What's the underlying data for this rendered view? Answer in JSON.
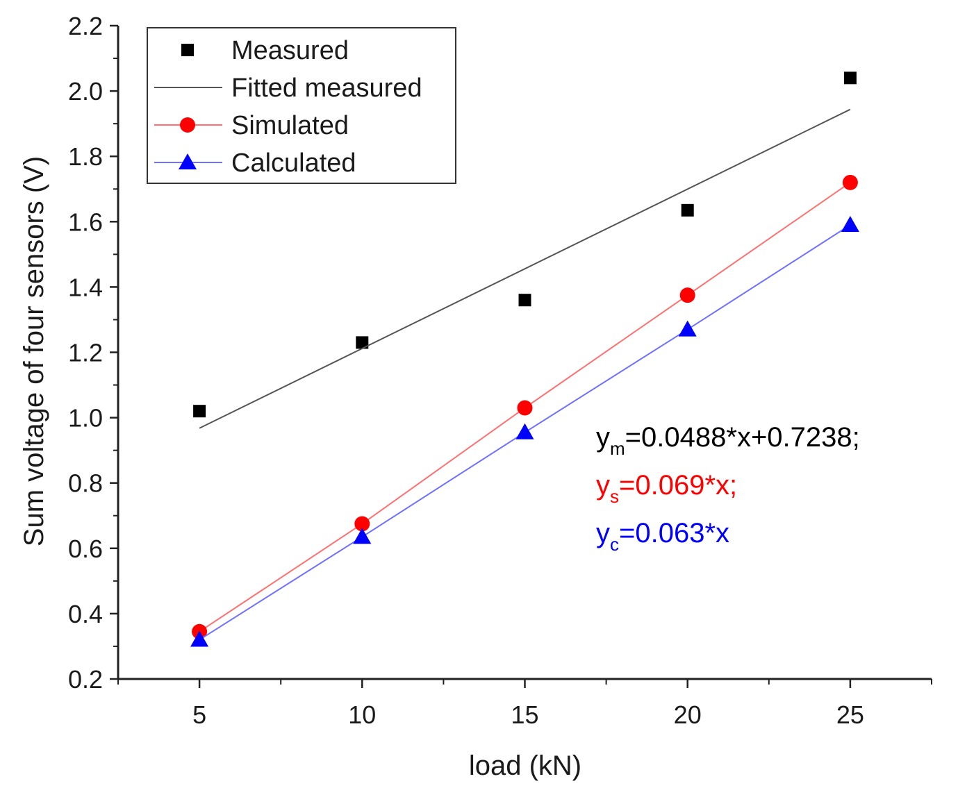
{
  "chart_data": {
    "type": "scatter",
    "title": "",
    "xlabel": "load (kN)",
    "ylabel": "Sum voltage of four sensors (V)",
    "xlim": [
      2.5,
      27.5
    ],
    "ylim": [
      0.2,
      2.2
    ],
    "x_ticks": [
      5,
      10,
      15,
      20,
      25
    ],
    "x_minor_ticks": [
      2.5,
      7.5,
      12.5,
      17.5,
      22.5,
      27.5
    ],
    "y_ticks": [
      0.2,
      0.4,
      0.6,
      0.8,
      1.0,
      1.2,
      1.4,
      1.6,
      1.8,
      2.0,
      2.2
    ],
    "x_tick_labels": [
      "5",
      "10",
      "15",
      "20",
      "25"
    ],
    "y_tick_labels": [
      "0.2",
      "0.4",
      "0.6",
      "0.8",
      "1.0",
      "1.2",
      "1.4",
      "1.6",
      "1.8",
      "2.0",
      "2.2"
    ],
    "series": [
      {
        "name": "Measured",
        "marker": "square",
        "line": false,
        "color": "#000000",
        "x": [
          5,
          10,
          15,
          20,
          25
        ],
        "y": [
          1.02,
          1.23,
          1.36,
          1.635,
          2.04
        ]
      },
      {
        "name": "Fitted measured",
        "marker": "none",
        "line": true,
        "color": "#555555",
        "x": [
          5,
          25
        ],
        "y": [
          0.9678,
          1.9438
        ]
      },
      {
        "name": "Simulated",
        "marker": "circle",
        "line": true,
        "color": "#ff0000",
        "line_color": "#ff7070",
        "x": [
          5,
          10,
          15,
          20,
          25
        ],
        "y": [
          0.345,
          0.675,
          1.03,
          1.375,
          1.72
        ]
      },
      {
        "name": "Calculated",
        "marker": "triangle",
        "line": true,
        "color": "#0000ff",
        "line_color": "#7070ff",
        "x": [
          5,
          10,
          15,
          20,
          25
        ],
        "y": [
          0.32,
          0.635,
          0.955,
          1.27,
          1.59
        ]
      }
    ],
    "legend": {
      "position": "top-left",
      "entries": [
        "Measured",
        "Fitted measured",
        "Simulated",
        "Calculated"
      ]
    },
    "annotations": [
      {
        "base": "y",
        "sub": "m",
        "rest": "=0.0488*x+0.7238;",
        "color": "#000000"
      },
      {
        "base": "y",
        "sub": "s",
        "rest": "=0.069*x;",
        "color": "#ff0000"
      },
      {
        "base": "y",
        "sub": "c",
        "rest": "=0.063*x",
        "color": "#0000ff"
      }
    ]
  }
}
